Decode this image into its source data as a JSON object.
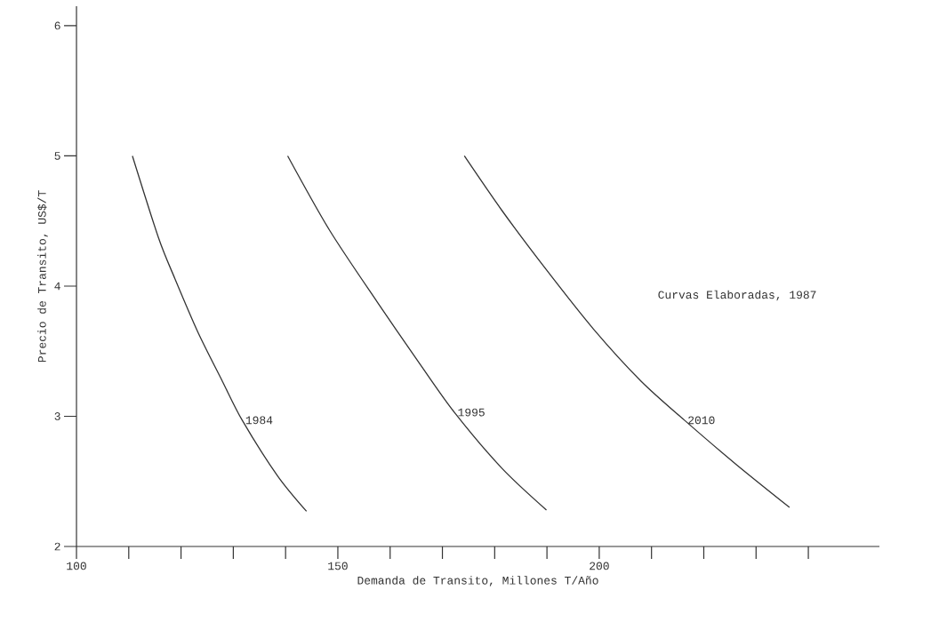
{
  "chart_data": {
    "type": "line",
    "xlabel": "Demanda de Transito, Millones T/Año",
    "ylabel": "Precio de Transito, US$/T",
    "annotations": [
      "Curvas Elaboradas, 1987"
    ],
    "xlim": [
      100,
      253.6
    ],
    "ylim": [
      2,
      6.15
    ],
    "xticks": [
      100,
      {
        "value": 110,
        "label": null
      },
      {
        "value": 120,
        "label": null
      },
      {
        "value": 130,
        "label": null
      },
      {
        "value": 140,
        "label": null
      },
      150,
      {
        "value": 160,
        "label": null
      },
      {
        "value": 170,
        "label": null
      },
      {
        "value": 180,
        "label": null
      },
      {
        "value": 190,
        "label": null
      },
      200,
      {
        "value": 210,
        "label": null
      },
      {
        "value": 220,
        "label": null
      },
      {
        "value": 230,
        "label": null
      },
      {
        "value": 240,
        "label": null
      }
    ],
    "yticks": [
      2,
      3,
      4,
      5,
      6
    ],
    "grid": false,
    "marker": "none",
    "line_style": "solid",
    "series": [
      {
        "name": "1984",
        "color": "#333333",
        "x": [
          110.7,
          115.7,
          118.8,
          123.3,
          127.9,
          131.7,
          138.5,
          144.0
        ],
        "values": [
          5.0,
          4.37,
          4.06,
          3.64,
          3.27,
          2.97,
          2.54,
          2.27
        ]
      },
      {
        "name": "1995",
        "color": "#333333",
        "x": [
          140.4,
          148.4,
          157.5,
          165.9,
          172.3,
          181.4,
          189.9
        ],
        "values": [
          5.0,
          4.43,
          3.88,
          3.39,
          3.03,
          2.6,
          2.28
        ]
      },
      {
        "name": "2010",
        "color": "#333333",
        "x": [
          174.2,
          181.4,
          189.8,
          198.9,
          208.0,
          216.3,
          226.2,
          236.4
        ],
        "values": [
          5.0,
          4.58,
          4.13,
          3.67,
          3.27,
          2.97,
          2.63,
          2.3
        ]
      }
    ]
  }
}
